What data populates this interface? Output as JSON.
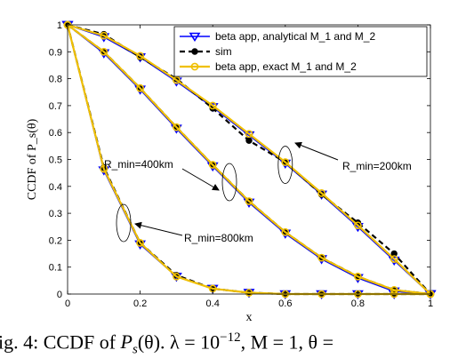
{
  "chart_data": {
    "type": "line",
    "xlabel": "x",
    "ylabel": "CCDF of P_s(θ)",
    "xlim": [
      0,
      1
    ],
    "ylim": [
      0,
      1
    ],
    "xticks": [
      "0",
      "0.2",
      "0.4",
      "0.6",
      "0.8",
      "1"
    ],
    "yticks": [
      "0",
      "0.1",
      "0.2",
      "0.3",
      "0.4",
      "0.5",
      "0.6",
      "0.7",
      "0.8",
      "0.9",
      "1"
    ],
    "grid": false,
    "legend_position": "top-right",
    "legend": [
      {
        "label": "beta app, analytical M_1 and M_2",
        "color": "#0000ff",
        "marker": "triangle-down"
      },
      {
        "label": "sim",
        "color": "#000000",
        "marker": "star"
      },
      {
        "label": "beta app, exact M_1 and M_2",
        "color": "#f0c000",
        "marker": "circle"
      }
    ],
    "x": [
      0,
      0.1,
      0.2,
      0.3,
      0.4,
      0.5,
      0.6,
      0.7,
      0.8,
      0.9,
      1
    ],
    "series": [
      {
        "group": "R_min=200km",
        "style": "beta_analytical",
        "values": [
          1.0,
          0.955,
          0.88,
          0.79,
          0.695,
          0.59,
          0.485,
          0.37,
          0.25,
          0.125,
          0.0
        ]
      },
      {
        "group": "R_min=200km",
        "style": "sim",
        "values": [
          1.0,
          0.965,
          0.88,
          0.8,
          0.69,
          0.57,
          0.49,
          0.37,
          0.265,
          0.15,
          0.0
        ]
      },
      {
        "group": "R_min=200km",
        "style": "beta_exact",
        "values": [
          1.0,
          0.96,
          0.885,
          0.795,
          0.7,
          0.595,
          0.49,
          0.375,
          0.255,
          0.13,
          0.0
        ]
      },
      {
        "group": "R_min=400km",
        "style": "beta_analytical",
        "values": [
          1.0,
          0.895,
          0.76,
          0.615,
          0.475,
          0.34,
          0.225,
          0.13,
          0.06,
          0.01,
          0.0
        ]
      },
      {
        "group": "R_min=400km",
        "style": "sim",
        "values": [
          1.0,
          0.9,
          0.765,
          0.62,
          0.48,
          0.345,
          0.23,
          0.135,
          0.065,
          0.015,
          0.0
        ]
      },
      {
        "group": "R_min=400km",
        "style": "beta_exact",
        "values": [
          1.0,
          0.9,
          0.765,
          0.62,
          0.48,
          0.345,
          0.23,
          0.135,
          0.065,
          0.015,
          0.0
        ]
      },
      {
        "group": "R_min=800km",
        "style": "beta_analytical",
        "values": [
          1.0,
          0.46,
          0.185,
          0.065,
          0.02,
          0.005,
          0.0,
          0.0,
          0.0,
          0.0,
          0.0
        ]
      },
      {
        "group": "R_min=800km",
        "style": "sim",
        "values": [
          1.0,
          0.47,
          0.19,
          0.07,
          0.02,
          0.005,
          0.0,
          0.0,
          0.0,
          0.0,
          0.0
        ]
      },
      {
        "group": "R_min=800km",
        "style": "beta_exact",
        "values": [
          1.0,
          0.465,
          0.19,
          0.065,
          0.02,
          0.005,
          0.0,
          0.0,
          0.0,
          0.0,
          0.0
        ]
      }
    ],
    "annotations": [
      {
        "text": "R_min=200km",
        "points_to": [
          0.6,
          0.49
        ]
      },
      {
        "text": "R_min=400km",
        "points_to": [
          0.52,
          0.4
        ]
      },
      {
        "text": "R_min=800km",
        "points_to": [
          0.15,
          0.25
        ]
      }
    ]
  },
  "caption": {
    "prefix": "ig. 4: CCDF of ",
    "mid": "(θ). ",
    "lambda": "λ = 10",
    "lambda_exp": "−12",
    "rest": ", M = 1, θ ="
  }
}
